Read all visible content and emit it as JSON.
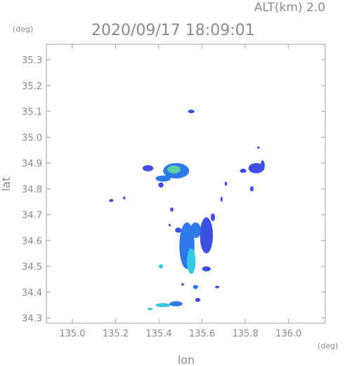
{
  "header": {
    "altitude_label": "ALT(km) 2.0",
    "timestamp": "2020/09/17 18:09:01"
  },
  "chart_data": {
    "type": "heatmap",
    "title": "2020/09/17 18:09:01",
    "xlabel": "lon",
    "ylabel": "lat",
    "x_unit": "(deg)",
    "y_unit": "(deg)",
    "xlim": [
      134.88,
      136.17
    ],
    "ylim": [
      34.28,
      35.36
    ],
    "x_ticks": [
      135.0,
      135.2,
      135.4,
      135.6,
      135.8,
      136.0
    ],
    "x_tick_labels": [
      "135.0",
      "135.2",
      "135.4",
      "135.6",
      "135.8",
      "136.0"
    ],
    "y_ticks": [
      34.3,
      34.4,
      34.5,
      34.6,
      34.7,
      34.8,
      34.9,
      35.0,
      35.1,
      35.2,
      35.3
    ],
    "y_tick_labels": [
      "34.3",
      "34.4",
      "34.5",
      "34.6",
      "34.7",
      "34.8",
      "34.9",
      "35.0",
      "35.1",
      "35.2",
      "35.3"
    ],
    "grid": false,
    "colors": {
      "low": "#3c50e6",
      "mid": "#2f78ea",
      "high": "#37c8e6",
      "peak": "#5ad2a0",
      "axis": "#a0a0a0"
    },
    "echoes": [
      {
        "lon": 135.55,
        "lat": 35.1,
        "rx": 0.015,
        "ry": 0.007,
        "level": "low"
      },
      {
        "lon": 135.48,
        "lat": 34.87,
        "rx": 0.06,
        "ry": 0.03,
        "level": "mid"
      },
      {
        "lon": 135.47,
        "lat": 34.875,
        "rx": 0.03,
        "ry": 0.015,
        "level": "peak"
      },
      {
        "lon": 135.42,
        "lat": 34.84,
        "rx": 0.035,
        "ry": 0.012,
        "level": "mid"
      },
      {
        "lon": 135.35,
        "lat": 34.88,
        "rx": 0.025,
        "ry": 0.012,
        "level": "low"
      },
      {
        "lon": 135.41,
        "lat": 34.815,
        "rx": 0.012,
        "ry": 0.01,
        "level": "low"
      },
      {
        "lon": 135.18,
        "lat": 34.755,
        "rx": 0.01,
        "ry": 0.006,
        "level": "low"
      },
      {
        "lon": 135.24,
        "lat": 34.765,
        "rx": 0.005,
        "ry": 0.006,
        "level": "low"
      },
      {
        "lon": 135.85,
        "lat": 34.88,
        "rx": 0.035,
        "ry": 0.02,
        "level": "low"
      },
      {
        "lon": 135.79,
        "lat": 34.87,
        "rx": 0.015,
        "ry": 0.008,
        "level": "low"
      },
      {
        "lon": 135.88,
        "lat": 34.89,
        "rx": 0.01,
        "ry": 0.02,
        "level": "low"
      },
      {
        "lon": 135.83,
        "lat": 34.8,
        "rx": 0.008,
        "ry": 0.01,
        "level": "low"
      },
      {
        "lon": 135.71,
        "lat": 34.82,
        "rx": 0.006,
        "ry": 0.008,
        "level": "low"
      },
      {
        "lon": 135.69,
        "lat": 34.76,
        "rx": 0.005,
        "ry": 0.01,
        "level": "low"
      },
      {
        "lon": 135.86,
        "lat": 34.96,
        "rx": 0.005,
        "ry": 0.005,
        "level": "low"
      },
      {
        "lon": 135.53,
        "lat": 34.58,
        "rx": 0.035,
        "ry": 0.09,
        "level": "mid"
      },
      {
        "lon": 135.55,
        "lat": 34.52,
        "rx": 0.02,
        "ry": 0.05,
        "level": "high"
      },
      {
        "lon": 135.62,
        "lat": 34.62,
        "rx": 0.03,
        "ry": 0.07,
        "level": "low"
      },
      {
        "lon": 135.57,
        "lat": 34.64,
        "rx": 0.025,
        "ry": 0.03,
        "level": "mid"
      },
      {
        "lon": 135.49,
        "lat": 34.64,
        "rx": 0.015,
        "ry": 0.01,
        "level": "low"
      },
      {
        "lon": 135.65,
        "lat": 34.69,
        "rx": 0.01,
        "ry": 0.015,
        "level": "low"
      },
      {
        "lon": 135.62,
        "lat": 34.49,
        "rx": 0.02,
        "ry": 0.01,
        "level": "low"
      },
      {
        "lon": 135.57,
        "lat": 34.42,
        "rx": 0.012,
        "ry": 0.008,
        "level": "mid"
      },
      {
        "lon": 135.58,
        "lat": 34.37,
        "rx": 0.012,
        "ry": 0.008,
        "level": "low"
      },
      {
        "lon": 135.67,
        "lat": 34.42,
        "rx": 0.01,
        "ry": 0.005,
        "level": "low"
      },
      {
        "lon": 135.41,
        "lat": 34.5,
        "rx": 0.01,
        "ry": 0.008,
        "level": "high"
      },
      {
        "lon": 135.46,
        "lat": 34.72,
        "rx": 0.008,
        "ry": 0.008,
        "level": "low"
      },
      {
        "lon": 135.42,
        "lat": 34.35,
        "rx": 0.035,
        "ry": 0.008,
        "level": "high"
      },
      {
        "lon": 135.48,
        "lat": 34.355,
        "rx": 0.03,
        "ry": 0.01,
        "level": "mid"
      },
      {
        "lon": 135.36,
        "lat": 34.335,
        "rx": 0.012,
        "ry": 0.005,
        "level": "high"
      },
      {
        "lon": 135.51,
        "lat": 34.43,
        "rx": 0.006,
        "ry": 0.005,
        "level": "low"
      },
      {
        "lon": 135.45,
        "lat": 34.66,
        "rx": 0.005,
        "ry": 0.005,
        "level": "low"
      }
    ]
  }
}
